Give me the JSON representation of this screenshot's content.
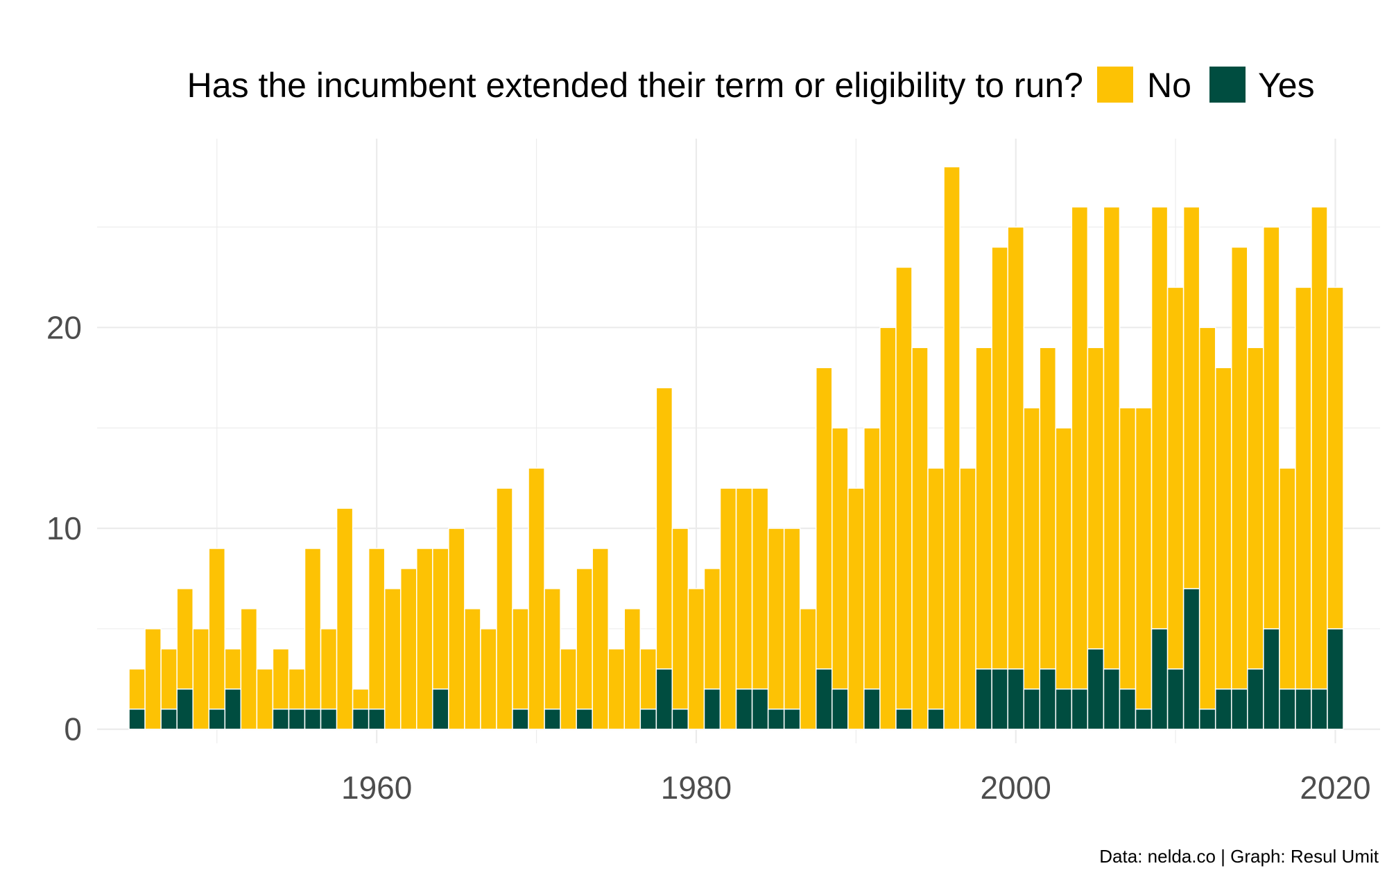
{
  "colors": {
    "no": "#FDC204",
    "yes": "#004D40",
    "grid": "#EBEBEB",
    "tick": "#4D4D4D"
  },
  "chart_data": {
    "type": "bar",
    "stacked": true,
    "legend_title": "Has the incumbent extended their term or eligibility to run?",
    "legend_position": "top",
    "caption": "Data: nelda.co | Graph: Resul Umit",
    "xlabel": "",
    "ylabel": "",
    "x_ticks": [
      1960,
      1980,
      2000,
      2020
    ],
    "x_ticks_labels": [
      "1960",
      "1980",
      "2000",
      "2020"
    ],
    "y_ticks": [
      0,
      10,
      20
    ],
    "y_ticks_labels": [
      "0",
      "10",
      "20"
    ],
    "xlim": [
      1942.5,
      2022.8
    ],
    "ylim": [
      -0.7,
      29.4
    ],
    "grid": true,
    "years": [
      1945,
      1946,
      1947,
      1948,
      1949,
      1950,
      1951,
      1952,
      1953,
      1954,
      1955,
      1956,
      1957,
      1958,
      1959,
      1960,
      1961,
      1962,
      1963,
      1964,
      1965,
      1966,
      1967,
      1968,
      1969,
      1970,
      1971,
      1972,
      1973,
      1974,
      1975,
      1976,
      1977,
      1978,
      1979,
      1980,
      1981,
      1982,
      1983,
      1984,
      1985,
      1986,
      1987,
      1988,
      1989,
      1990,
      1991,
      1992,
      1993,
      1994,
      1995,
      1996,
      1997,
      1998,
      1999,
      2000,
      2001,
      2002,
      2003,
      2004,
      2005,
      2006,
      2007,
      2008,
      2009,
      2010,
      2011,
      2012,
      2013,
      2014,
      2015,
      2016,
      2017,
      2018,
      2019,
      2020
    ],
    "series": [
      {
        "name": "No",
        "color": "#FDC204",
        "values": [
          2,
          5,
          3,
          5,
          5,
          8,
          2,
          6,
          3,
          3,
          2,
          8,
          4,
          11,
          1,
          8,
          7,
          8,
          9,
          7,
          10,
          6,
          5,
          12,
          5,
          13,
          6,
          4,
          7,
          9,
          4,
          6,
          3,
          14,
          9,
          7,
          6,
          12,
          10,
          10,
          9,
          9,
          6,
          15,
          13,
          12,
          13,
          20,
          22,
          19,
          12,
          28,
          13,
          16,
          21,
          22,
          14,
          16,
          13,
          24,
          15,
          23,
          14,
          15,
          21,
          19,
          19,
          19,
          16,
          22,
          16,
          20,
          11,
          20,
          24,
          17
        ]
      },
      {
        "name": "Yes",
        "color": "#004D40",
        "values": [
          1,
          0,
          1,
          2,
          0,
          1,
          2,
          0,
          0,
          1,
          1,
          1,
          1,
          0,
          1,
          1,
          0,
          0,
          0,
          2,
          0,
          0,
          0,
          0,
          1,
          0,
          1,
          0,
          1,
          0,
          0,
          0,
          1,
          3,
          1,
          0,
          2,
          0,
          2,
          2,
          1,
          1,
          0,
          3,
          2,
          0,
          2,
          0,
          1,
          0,
          1,
          0,
          0,
          3,
          3,
          3,
          2,
          3,
          2,
          2,
          4,
          3,
          2,
          1,
          5,
          3,
          7,
          1,
          2,
          2,
          3,
          5,
          2,
          2,
          2,
          5
        ]
      }
    ]
  }
}
